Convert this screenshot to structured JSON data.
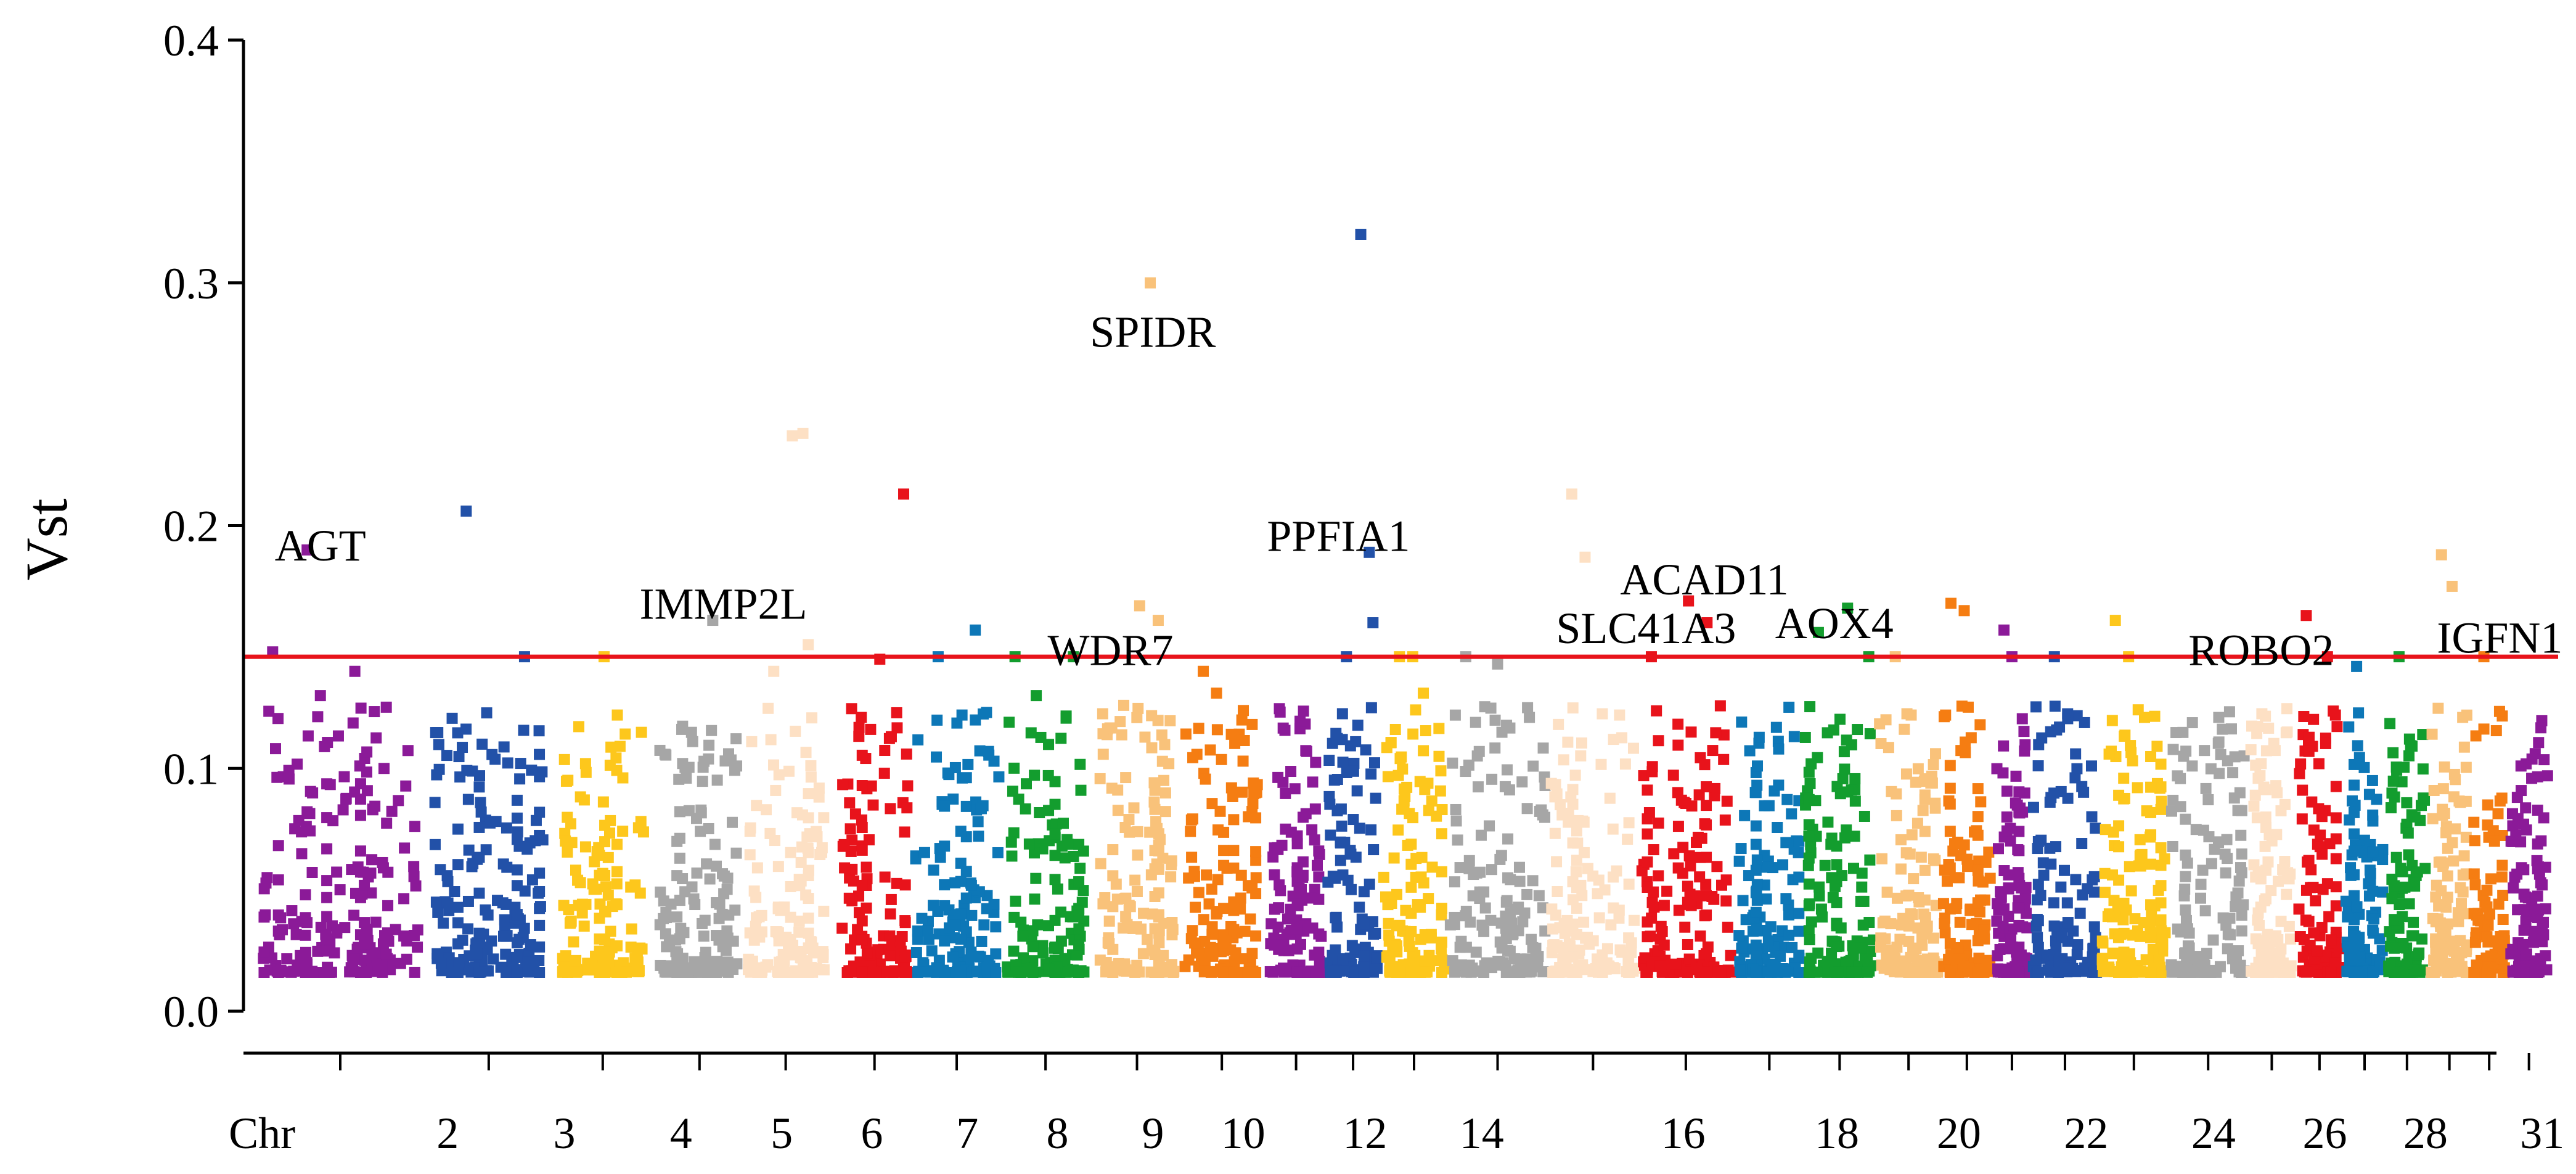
{
  "chart_data": {
    "type": "scatter",
    "title": "",
    "xlabel": "Chr",
    "ylabel": "Vst",
    "ylim": [
      0,
      0.4
    ],
    "yticks": [
      "0.0",
      "0.1",
      "0.2",
      "0.3",
      "0.4"
    ],
    "xtick_labels": [
      "Chr",
      "2",
      "3",
      "4",
      "5",
      "6",
      "7",
      "8",
      "9",
      "10",
      "12",
      "14",
      "16",
      "18",
      "20",
      "22",
      "24",
      "26",
      "28",
      "31"
    ],
    "threshold": {
      "value": 0.146,
      "color": "#e8131b"
    },
    "colors": [
      "#8b1a98",
      "#2251a8",
      "#fdc71c",
      "#a6a6a6",
      "#fde0c4",
      "#e8131b",
      "#0d77b7",
      "#139d2e",
      "#f9c27a",
      "#f57d12"
    ],
    "chromosomes": [
      {
        "chr": 1,
        "start": 0.0,
        "end": 2.95,
        "color": "#8b1a98",
        "peaks": [
          [
            0.2,
            0.148
          ],
          [
            0.85,
            0.19
          ],
          [
            1.1,
            0.13
          ],
          [
            1.75,
            0.14
          ],
          [
            2.3,
            0.1
          ]
        ]
      },
      {
        "chr": 2,
        "start": 3.25,
        "end": 5.3,
        "color": "#2251a8",
        "peaks": [
          [
            3.85,
            0.206
          ],
          [
            4.15,
            0.11
          ],
          [
            4.95,
            0.146
          ]
        ]
      },
      {
        "chr": 3,
        "start": 5.65,
        "end": 7.2,
        "color": "#fdc71c",
        "peaks": [
          [
            6.1,
            0.102
          ],
          [
            6.45,
            0.146
          ],
          [
            6.7,
            0.122
          ]
        ]
      },
      {
        "chr": 4,
        "start": 7.5,
        "end": 9.0,
        "color": "#a6a6a6",
        "peaks": [
          [
            8.0,
            0.096
          ],
          [
            8.5,
            0.161
          ],
          [
            8.95,
            0.101
          ]
        ]
      },
      {
        "chr": 5,
        "start": 9.15,
        "end": 10.6,
        "color": "#fde0c4",
        "peaks": [
          [
            9.65,
            0.14
          ],
          [
            10.0,
            0.237
          ],
          [
            10.2,
            0.238
          ],
          [
            10.3,
            0.151
          ]
        ]
      },
      {
        "chr": 6,
        "start": 10.9,
        "end": 12.2,
        "color": "#e8131b",
        "peaks": [
          [
            11.3,
            0.121
          ],
          [
            11.65,
            0.145
          ],
          [
            12.1,
            0.213
          ]
        ]
      },
      {
        "chr": 7,
        "start": 12.3,
        "end": 13.9,
        "color": "#0d77b7",
        "peaks": [
          [
            12.75,
            0.146
          ],
          [
            13.2,
            0.122
          ],
          [
            13.45,
            0.157
          ],
          [
            13.7,
            0.107
          ]
        ]
      },
      {
        "chr": 8,
        "start": 14.05,
        "end": 15.5,
        "color": "#139d2e",
        "peaks": [
          [
            14.2,
            0.146
          ],
          [
            14.6,
            0.13
          ],
          [
            15.3,
            0.146
          ]
        ]
      },
      {
        "chr": 9,
        "start": 15.8,
        "end": 17.2,
        "color": "#f9c27a",
        "peaks": [
          [
            16.25,
            0.126
          ],
          [
            16.55,
            0.167
          ],
          [
            16.75,
            0.3
          ],
          [
            16.9,
            0.161
          ],
          [
            17.1,
            0.102
          ]
        ]
      },
      {
        "chr": 10,
        "start": 17.4,
        "end": 18.8,
        "color": "#f57d12",
        "peaks": [
          [
            17.75,
            0.14
          ],
          [
            18.0,
            0.131
          ],
          [
            18.5,
            0.103
          ]
        ]
      },
      {
        "chr": 11,
        "start": 19.0,
        "end": 20.0,
        "color": "#8b1a98",
        "peaks": [
          [
            19.3,
            0.075
          ],
          [
            19.7,
            0.107
          ],
          [
            19.9,
            0.06
          ]
        ]
      },
      {
        "chr": 12,
        "start": 20.1,
        "end": 21.05,
        "color": "#2251a8",
        "peaks": [
          [
            20.45,
            0.146
          ],
          [
            20.72,
            0.32
          ],
          [
            20.88,
            0.189
          ],
          [
            20.95,
            0.16
          ]
        ]
      },
      {
        "chr": 13,
        "start": 21.15,
        "end": 22.3,
        "color": "#fdc71c",
        "peaks": [
          [
            21.45,
            0.146
          ],
          [
            21.7,
            0.146
          ],
          [
            21.9,
            0.131
          ]
        ]
      },
      {
        "chr": 14,
        "start": 22.4,
        "end": 24.2,
        "color": "#a6a6a6",
        "peaks": [
          [
            22.7,
            0.146
          ],
          [
            23.3,
            0.143
          ],
          [
            23.9,
            0.121
          ]
        ]
      },
      {
        "chr": 15,
        "start": 24.3,
        "end": 25.9,
        "color": "#fde0c4",
        "peaks": [
          [
            24.7,
            0.213
          ],
          [
            24.95,
            0.187
          ],
          [
            25.6,
            0.122
          ]
        ]
      },
      {
        "chr": 16,
        "start": 26.0,
        "end": 27.7,
        "color": "#e8131b",
        "peaks": [
          [
            26.2,
            0.146
          ],
          [
            26.9,
            0.169
          ],
          [
            27.25,
            0.16
          ]
        ]
      },
      {
        "chr": 17,
        "start": 27.85,
        "end": 29.0,
        "color": "#0d77b7",
        "peaks": [
          [
            28.2,
            0.101
          ],
          [
            28.6,
            0.108
          ]
        ]
      },
      {
        "chr": 18,
        "start": 29.1,
        "end": 30.4,
        "color": "#139d2e",
        "peaks": [
          [
            29.35,
            0.156
          ],
          [
            29.9,
            0.166
          ],
          [
            30.3,
            0.146
          ]
        ]
      },
      {
        "chr": 19,
        "start": 30.5,
        "end": 31.6,
        "color": "#f9c27a",
        "peaks": [
          [
            30.8,
            0.146
          ],
          [
            31.1,
            0.122
          ],
          [
            31.5,
            0.094
          ]
        ]
      },
      {
        "chr": 20,
        "start": 31.7,
        "end": 32.6,
        "color": "#f57d12",
        "peaks": [
          [
            31.85,
            0.168
          ],
          [
            32.1,
            0.165
          ],
          [
            32.4,
            0.118
          ]
        ]
      },
      {
        "chr": 21,
        "start": 32.7,
        "end": 33.3,
        "color": "#8b1a98",
        "peaks": [
          [
            32.85,
            0.157
          ],
          [
            33.0,
            0.146
          ]
        ]
      },
      {
        "chr": 22,
        "start": 33.4,
        "end": 34.6,
        "color": "#2251a8",
        "peaks": [
          [
            33.8,
            0.146
          ],
          [
            34.2,
            0.106
          ],
          [
            34.5,
            0.101
          ]
        ]
      },
      {
        "chr": 23,
        "start": 34.7,
        "end": 35.9,
        "color": "#fdc71c",
        "peaks": [
          [
            34.95,
            0.161
          ],
          [
            35.2,
            0.146
          ],
          [
            35.5,
            0.121
          ]
        ]
      },
      {
        "chr": 24,
        "start": 36.0,
        "end": 37.4,
        "color": "#a6a6a6",
        "peaks": [
          [
            36.4,
            0.101
          ],
          [
            36.9,
            0.121
          ],
          [
            37.3,
            0.09
          ]
        ]
      },
      {
        "chr": 25,
        "start": 37.5,
        "end": 38.3,
        "color": "#fde0c4",
        "peaks": [
          [
            37.7,
            0.102
          ],
          [
            38.0,
            0.09
          ]
        ]
      },
      {
        "chr": 26,
        "start": 38.4,
        "end": 39.2,
        "color": "#e8131b",
        "peaks": [
          [
            38.55,
            0.163
          ],
          [
            38.95,
            0.146
          ],
          [
            39.1,
            0.122
          ]
        ]
      },
      {
        "chr": 27,
        "start": 39.3,
        "end": 40.0,
        "color": "#0d77b7",
        "peaks": [
          [
            39.5,
            0.142
          ],
          [
            39.8,
            0.095
          ]
        ]
      },
      {
        "chr": 28,
        "start": 40.1,
        "end": 40.8,
        "color": "#139d2e",
        "peaks": [
          [
            40.3,
            0.146
          ],
          [
            40.6,
            0.08
          ]
        ]
      },
      {
        "chr": 29,
        "start": 40.9,
        "end": 41.6,
        "color": "#f9c27a",
        "peaks": [
          [
            41.1,
            0.188
          ],
          [
            41.3,
            0.175
          ],
          [
            41.5,
            0.121
          ]
        ]
      },
      {
        "chr": 30,
        "start": 41.7,
        "end": 42.3,
        "color": "#f57d12",
        "peaks": [
          [
            41.9,
            0.146
          ],
          [
            42.1,
            0.07
          ]
        ]
      },
      {
        "chr": 31,
        "start": 42.4,
        "end": 43.1,
        "color": "#8b1a98",
        "peaks": [
          [
            42.6,
            0.101
          ],
          [
            42.9,
            0.062
          ]
        ]
      }
    ],
    "annotations": [
      {
        "text": "AGT",
        "x": 1.1,
        "y": 0.192
      },
      {
        "text": "IMMP2L",
        "x": 8.7,
        "y": 0.168
      },
      {
        "text": "SPIDR",
        "x": 16.8,
        "y": 0.28
      },
      {
        "text": "WDR7",
        "x": 16.0,
        "y": 0.149
      },
      {
        "text": "PPFIA1",
        "x": 20.3,
        "y": 0.196
      },
      {
        "text": "ACAD11",
        "x": 27.2,
        "y": 0.178
      },
      {
        "text": "SLC41A3",
        "x": 26.1,
        "y": 0.158
      },
      {
        "text": "AOX4",
        "x": 29.65,
        "y": 0.16
      },
      {
        "text": "ROBO2",
        "x": 37.7,
        "y": 0.149
      },
      {
        "text": "IGFN1",
        "x": 42.2,
        "y": 0.154
      }
    ],
    "xtick_positions": [
      0,
      3.5,
      5.7,
      7.9,
      9.8,
      11.5,
      13.3,
      15.0,
      16.8,
      18.5,
      20.8,
      23.0,
      26.8,
      29.7,
      32.0,
      34.4,
      36.8,
      38.9,
      40.8,
      43.0
    ],
    "xlim": [
      -0.35,
      43.3
    ]
  }
}
